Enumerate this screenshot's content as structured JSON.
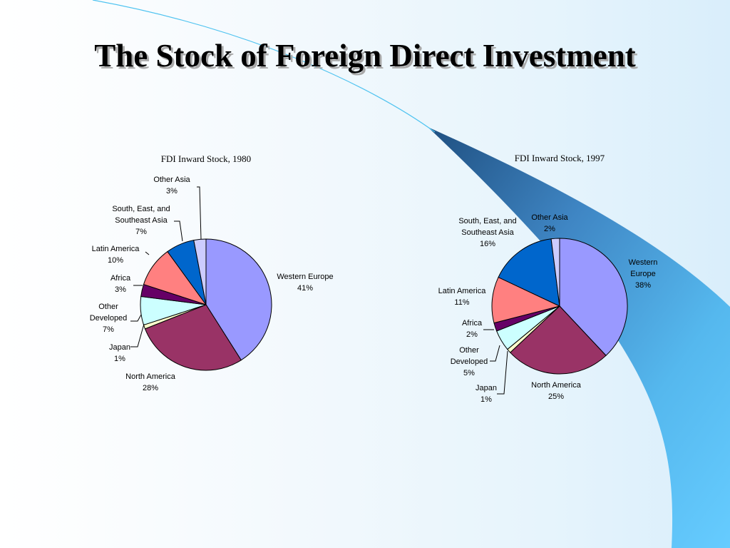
{
  "slide": {
    "title": "The Stock of Foreign Direct Investment"
  },
  "chart_data": [
    {
      "type": "pie",
      "title": "FDI Inward Stock, 1980",
      "slices": [
        {
          "label": "Western Europe",
          "value": 41,
          "value_label": "41%",
          "color": "#9999ff"
        },
        {
          "label": "North America",
          "value": 28,
          "value_label": "28%",
          "color": "#993366"
        },
        {
          "label": "Japan",
          "value": 1,
          "value_label": "1%",
          "color": "#ffffcc"
        },
        {
          "label": "Other Developed",
          "value": 7,
          "value_label": "7%",
          "color": "#ccffff"
        },
        {
          "label": "Africa",
          "value": 3,
          "value_label": "3%",
          "color": "#660066"
        },
        {
          "label": "Latin America",
          "value": 10,
          "value_label": "10%",
          "color": "#ff8080"
        },
        {
          "label": "South, East, and Southeast Asia",
          "value": 7,
          "value_label": "7%",
          "color": "#0066cc"
        },
        {
          "label": "Other Asia",
          "value": 3,
          "value_label": "3%",
          "color": "#ccccff"
        }
      ]
    },
    {
      "type": "pie",
      "title": "FDI Inward Stock, 1997",
      "slices": [
        {
          "label": "Western Europe",
          "value": 38,
          "value_label": "38%",
          "color": "#9999ff"
        },
        {
          "label": "North America",
          "value": 25,
          "value_label": "25%",
          "color": "#993366"
        },
        {
          "label": "Japan",
          "value": 1,
          "value_label": "1%",
          "color": "#ffffcc"
        },
        {
          "label": "Other Developed",
          "value": 5,
          "value_label": "5%",
          "color": "#ccffff"
        },
        {
          "label": "Africa",
          "value": 2,
          "value_label": "2%",
          "color": "#660066"
        },
        {
          "label": "Latin America",
          "value": 11,
          "value_label": "11%",
          "color": "#ff8080"
        },
        {
          "label": "South, East, and Southeast Asia",
          "value": 16,
          "value_label": "16%",
          "color": "#0066cc"
        },
        {
          "label": "Other Asia",
          "value": 2,
          "value_label": "2%",
          "color": "#ccccff"
        }
      ]
    }
  ]
}
